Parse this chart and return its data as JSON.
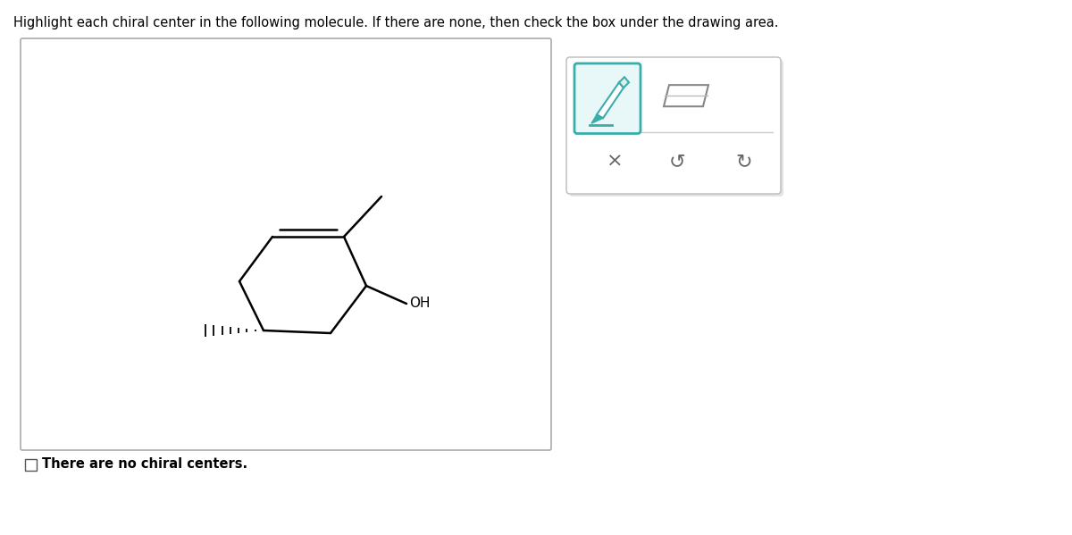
{
  "title_text": "Highlight each chiral center in the following molecule. If there are none, then check the box under the drawing area.",
  "bg_color": "#ffffff",
  "teal_color": "#3aacac",
  "gray_border": "#aaaaaa",
  "toolbar_bg": "#f0f0f0"
}
